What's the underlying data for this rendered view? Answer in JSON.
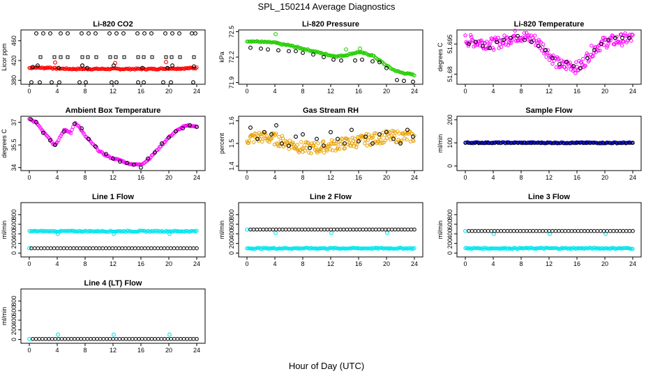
{
  "figure": {
    "title": "SPL_150214  Average Diagnostics",
    "xlabel": "Hour of Day (UTC)"
  },
  "colors": {
    "black": "#000000",
    "red": "#ff0000",
    "green": "#22cc00",
    "magenta": "#ff00ff",
    "orange": "#e8a000",
    "blue": "#0000cc",
    "cyan": "#00e5ee"
  },
  "chart_data": [
    {
      "type": "scatter",
      "title": "Li-820 CO2",
      "ylabel": "Licor ppm",
      "xlim": [
        0,
        24
      ],
      "ylim": [
        372,
        482
      ],
      "xticks": [
        0,
        4,
        8,
        12,
        16,
        20,
        24
      ],
      "yticks": [
        380,
        420,
        460
      ],
      "grid": false,
      "series": [
        {
          "color": "red",
          "marker": "dense",
          "x": [
            0,
            1,
            2,
            3,
            3.5,
            4,
            6,
            8,
            10,
            12,
            14,
            16,
            18,
            20,
            22,
            24
          ],
          "y": [
            405,
            406,
            405,
            406,
            404,
            404,
            403,
            403,
            403,
            403,
            403,
            403,
            403,
            404,
            404,
            405
          ]
        },
        {
          "color": "red",
          "marker": "circle",
          "x": [
            3.7,
            7.6,
            12.3,
            19.6
          ],
          "y": [
            416,
            410,
            415,
            417
          ]
        },
        {
          "color": "black",
          "marker": "circle",
          "x": [
            1,
            2,
            3,
            4.5,
            5.5,
            7.5,
            8.5,
            9.5,
            11.5,
            12.5,
            13.5,
            15.5,
            16.5,
            17.5,
            19.5,
            20.5,
            21.5,
            23.3,
            23.8
          ],
          "y": [
            475,
            475,
            475,
            475,
            475,
            475,
            475,
            475,
            475,
            475,
            475,
            475,
            475,
            475,
            475,
            475,
            475,
            475,
            475
          ]
        },
        {
          "color": "black",
          "marker": "circle",
          "x": [
            0.3,
            1.5,
            3.2,
            4.3,
            7.2,
            8.1,
            11.8,
            12.5,
            15.6,
            16.4,
            19.2,
            20.3,
            23.5
          ],
          "y": [
            376,
            376,
            376,
            376,
            376,
            376,
            376,
            376,
            376,
            376,
            376,
            376,
            376
          ]
        },
        {
          "color": "black",
          "marker": "square",
          "x": [
            1.6,
            3.6,
            4.5,
            5.5,
            7.6,
            8.4,
            9.6,
            11.6,
            12.4,
            13.6,
            15.6,
            16.4,
            17.6,
            19.6,
            20.4,
            21.6,
            23.6
          ],
          "y": [
            427,
            427,
            427,
            427,
            427,
            427,
            427,
            427,
            427,
            427,
            427,
            427,
            427,
            427,
            427,
            427,
            427
          ]
        },
        {
          "color": "black",
          "marker": "circle",
          "x": [
            0.5,
            1.2,
            4.2,
            7.6,
            8.3,
            12.1,
            16.2,
            19.8,
            20.5,
            23.6
          ],
          "y": [
            407,
            410,
            405,
            410,
            405,
            410,
            405,
            405,
            410,
            408
          ]
        }
      ]
    },
    {
      "type": "scatter",
      "title": "Li-820 Pressure",
      "ylabel": "kPa",
      "xlim": [
        0,
        24
      ],
      "ylim": [
        71.88,
        72.52
      ],
      "xticks": [
        0,
        4,
        8,
        12,
        16,
        20,
        24
      ],
      "yticks": [
        71.9,
        72.2,
        72.5
      ],
      "grid": false,
      "series": [
        {
          "color": "green",
          "marker": "dense",
          "x": [
            0,
            2,
            4,
            5,
            6,
            8,
            10,
            12,
            13,
            14,
            16,
            18,
            20,
            21,
            22,
            24
          ],
          "y": [
            72.39,
            72.38,
            72.37,
            72.35,
            72.34,
            72.3,
            72.26,
            72.22,
            72.21,
            72.22,
            72.26,
            72.22,
            72.1,
            72.05,
            72.02,
            71.99
          ]
        },
        {
          "color": "green",
          "marker": "circle",
          "x": [
            4.1,
            14.2,
            16.2
          ],
          "y": [
            72.47,
            72.29,
            72.3
          ]
        },
        {
          "color": "black",
          "marker": "circle",
          "x": [
            0.5,
            2,
            3,
            4.5,
            6,
            7,
            8,
            9.5,
            11,
            12.4,
            13.5,
            15.5,
            16.5,
            18,
            19,
            20,
            21.5,
            22.5,
            23.8
          ],
          "y": [
            72.31,
            72.3,
            72.29,
            72.28,
            72.27,
            72.27,
            72.25,
            72.23,
            72.2,
            72.17,
            72.16,
            72.16,
            72.17,
            72.15,
            72.14,
            72.07,
            71.93,
            71.92,
            71.91
          ]
        }
      ]
    },
    {
      "type": "scatter",
      "title": "Li-820 Temperature",
      "ylabel": "degrees C",
      "xlim": [
        0,
        24
      ],
      "ylim": [
        51.675,
        51.702
      ],
      "xticks": [
        0,
        4,
        8,
        12,
        16,
        20,
        24
      ],
      "yticks": [
        51.68,
        51.695
      ],
      "grid": false,
      "series": [
        {
          "color": "magenta",
          "marker": "dense-noisy",
          "x": [
            0,
            2,
            4,
            6,
            7,
            8,
            10,
            11,
            12,
            13,
            14,
            15,
            16,
            17,
            18,
            19,
            20,
            22,
            24
          ],
          "y": [
            51.697,
            51.696,
            51.695,
            51.697,
            51.699,
            51.699,
            51.697,
            51.694,
            51.69,
            51.686,
            51.684,
            51.685,
            51.683,
            51.686,
            51.691,
            51.694,
            51.696,
            51.697,
            51.698
          ]
        },
        {
          "color": "black",
          "marker": "circle",
          "x": [
            0.5,
            1.5,
            2.5,
            3.5,
            4.5,
            5.5,
            6.5,
            7.5,
            8.5,
            9.5,
            10.5,
            11.5,
            12.5,
            13.5,
            14.5,
            15.5,
            16.5,
            17.5,
            18.5,
            19.5,
            20.5,
            21.5,
            22.5,
            23.5
          ],
          "y": [
            51.695,
            51.696,
            51.694,
            51.693,
            51.696,
            51.697,
            51.698,
            51.699,
            51.697,
            51.696,
            51.694,
            51.692,
            51.688,
            51.685,
            51.686,
            51.684,
            51.683,
            51.688,
            51.692,
            51.695,
            51.697,
            51.698,
            51.698,
            51.698
          ]
        }
      ]
    },
    {
      "type": "scatter",
      "title": "Ambient Box Temperature",
      "ylabel": "degrees C",
      "xlim": [
        0,
        24
      ],
      "ylim": [
        33.8,
        37.4
      ],
      "xticks": [
        0,
        4,
        8,
        12,
        16,
        20,
        24
      ],
      "yticks": [
        34.0,
        35.5,
        37.0
      ],
      "grid": false,
      "series": [
        {
          "color": "magenta",
          "marker": "dense",
          "x": [
            0,
            1,
            2,
            3,
            3.5,
            4,
            5,
            6,
            6.5,
            7,
            8,
            9,
            10,
            11,
            12,
            13,
            14,
            15,
            16,
            17,
            18,
            19,
            20,
            21,
            22,
            23,
            24
          ],
          "y": [
            37.2,
            37.0,
            36.4,
            35.9,
            35.5,
            35.7,
            36.5,
            36.3,
            37.0,
            36.8,
            36.1,
            35.6,
            35.1,
            34.8,
            34.6,
            34.5,
            34.3,
            34.2,
            34.2,
            34.5,
            35.0,
            35.5,
            36.0,
            36.4,
            36.7,
            36.8,
            36.7
          ]
        },
        {
          "color": "black",
          "marker": "circle",
          "x": [
            0.2,
            1,
            2,
            3,
            3.7,
            5,
            6.5,
            7.5,
            8.5,
            9.5,
            11,
            12,
            13,
            14,
            15,
            16,
            17,
            18,
            19,
            20,
            21,
            22,
            23,
            24
          ],
          "y": [
            37.2,
            37.0,
            36.3,
            35.8,
            35.5,
            36.4,
            36.9,
            36.6,
            35.9,
            35.4,
            34.9,
            34.6,
            34.4,
            34.3,
            34.2,
            34.0,
            34.6,
            35.0,
            35.6,
            36.0,
            36.4,
            36.6,
            36.8,
            36.7
          ]
        }
      ]
    },
    {
      "type": "scatter",
      "title": "Gas Stream RH",
      "ylabel": "percent",
      "xlim": [
        0,
        24
      ],
      "ylim": [
        1.38,
        1.62
      ],
      "xticks": [
        0,
        4,
        8,
        12,
        16,
        20,
        24
      ],
      "yticks": [
        1.4,
        1.5,
        1.6
      ],
      "grid": false,
      "series": [
        {
          "color": "orange",
          "marker": "dense-noisy",
          "x": [
            0,
            2,
            4,
            6,
            8,
            10,
            12,
            14,
            16,
            18,
            20,
            22,
            24
          ],
          "y": [
            1.52,
            1.53,
            1.52,
            1.5,
            1.48,
            1.48,
            1.49,
            1.5,
            1.51,
            1.52,
            1.53,
            1.53,
            1.53
          ]
        },
        {
          "color": "black",
          "marker": "circle",
          "x": [
            0.5,
            1.5,
            2.5,
            3.5,
            4.2,
            5,
            6,
            7,
            8,
            9,
            10,
            11,
            12,
            13,
            14,
            15,
            16,
            17,
            18,
            19,
            20,
            21,
            22,
            23,
            23.8
          ],
          "y": [
            1.57,
            1.52,
            1.55,
            1.54,
            1.58,
            1.5,
            1.49,
            1.53,
            1.54,
            1.48,
            1.52,
            1.49,
            1.55,
            1.52,
            1.5,
            1.56,
            1.51,
            1.53,
            1.5,
            1.54,
            1.55,
            1.52,
            1.5,
            1.56,
            1.53
          ]
        }
      ]
    },
    {
      "type": "scatter",
      "title": "Sample Flow",
      "ylabel": "ml/min",
      "xlim": [
        0,
        24
      ],
      "ylim": [
        -20,
        215
      ],
      "xticks": [
        0,
        4,
        8,
        12,
        16,
        20,
        24
      ],
      "yticks": [
        0,
        100,
        200
      ],
      "grid": false,
      "series": [
        {
          "color": "blue",
          "marker": "dense",
          "x": [
            0,
            24
          ],
          "y": [
            101,
            100
          ]
        },
        {
          "color": "black",
          "marker": "circle-row",
          "x": [
            0,
            24
          ],
          "y": [
            100,
            100
          ]
        }
      ]
    },
    {
      "type": "scatter",
      "title": "Line 1 Flow",
      "ylabel": "ml/min",
      "xlim": [
        0,
        24
      ],
      "ylim": [
        -80,
        1050
      ],
      "xticks": [
        0,
        4,
        8,
        12,
        16,
        20,
        24
      ],
      "yticks": [
        0,
        200,
        400,
        600,
        800
      ],
      "grid": false,
      "series": [
        {
          "color": "cyan",
          "marker": "dense",
          "x": [
            0,
            24
          ],
          "y": [
            455,
            455
          ]
        },
        {
          "color": "cyan",
          "marker": "circle",
          "x": [
            0,
            4.1,
            12.1,
            20.1
          ],
          "y": [
            100,
            400,
            400,
            400
          ]
        },
        {
          "color": "black",
          "marker": "circle-row",
          "x": [
            0.3,
            24
          ],
          "y": [
            100,
            100
          ]
        }
      ]
    },
    {
      "type": "scatter",
      "title": "Line 2 Flow",
      "ylabel": "ml/min",
      "xlim": [
        0,
        24
      ],
      "ylim": [
        -80,
        1050
      ],
      "xticks": [
        0,
        4,
        8,
        12,
        16,
        20,
        24
      ],
      "yticks": [
        0,
        200,
        400,
        600,
        800
      ],
      "grid": false,
      "series": [
        {
          "color": "cyan",
          "marker": "dense",
          "x": [
            0,
            24
          ],
          "y": [
            100,
            100
          ]
        },
        {
          "color": "cyan",
          "marker": "circle",
          "x": [
            0,
            4.1,
            12.1,
            20.1
          ],
          "y": [
            490,
            420,
            420,
            420
          ]
        },
        {
          "color": "black",
          "marker": "circle-row",
          "x": [
            0.5,
            24
          ],
          "y": [
            490,
            490
          ]
        }
      ]
    },
    {
      "type": "scatter",
      "title": "Line 3 Flow",
      "ylabel": "ml/min",
      "xlim": [
        0,
        24
      ],
      "ylim": [
        -80,
        1050
      ],
      "xticks": [
        0,
        4,
        8,
        12,
        16,
        20,
        24
      ],
      "yticks": [
        0,
        200,
        400,
        600,
        800
      ],
      "grid": false,
      "series": [
        {
          "color": "cyan",
          "marker": "dense",
          "x": [
            0,
            24
          ],
          "y": [
            100,
            100
          ]
        },
        {
          "color": "cyan",
          "marker": "circle",
          "x": [
            0,
            4.1,
            12.1,
            20.1
          ],
          "y": [
            460,
            400,
            400,
            400
          ]
        },
        {
          "color": "black",
          "marker": "circle-row",
          "x": [
            0.5,
            24
          ],
          "y": [
            460,
            460
          ]
        }
      ]
    },
    {
      "type": "scatter",
      "title": "Line 4 (LT) Flow",
      "ylabel": "ml/min",
      "xlim": [
        0,
        24
      ],
      "ylim": [
        -80,
        1050
      ],
      "xticks": [
        0,
        4,
        8,
        12,
        16,
        20,
        24
      ],
      "yticks": [
        0,
        200,
        400,
        600,
        800
      ],
      "grid": false,
      "series": [
        {
          "color": "cyan",
          "marker": "circle",
          "x": [
            0,
            4.1,
            12.1,
            20.1
          ],
          "y": [
            10,
            100,
            100,
            100
          ]
        },
        {
          "color": "black",
          "marker": "circle-row",
          "x": [
            0.5,
            24
          ],
          "y": [
            10,
            10
          ]
        }
      ]
    }
  ]
}
